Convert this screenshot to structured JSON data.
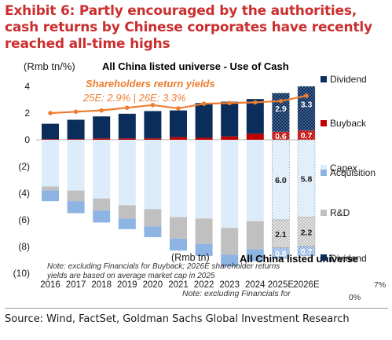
{
  "page": {
    "title": "Exhibit 6: Partly encouraged by the authorities, cash returns by Chinese corporates have recently reached all-time highs",
    "source": "Source: Wind, FactSet, Goldman Sachs Global Investment Research"
  },
  "chart_data": {
    "type": "bar",
    "title": "All China listed universe - Use of Cash",
    "ylabel": "(Rmb tn/%)",
    "ylim": [
      -10,
      4
    ],
    "yticks": [
      "4",
      "2",
      "0",
      "(2)",
      "(4)",
      "(6)",
      "(8)",
      "(10)"
    ],
    "categories": [
      "2016",
      "2017",
      "2018",
      "2019",
      "2020",
      "2021",
      "2022",
      "2023",
      "2024",
      "2025E",
      "2026E"
    ],
    "series": [
      {
        "name": "Dividend",
        "color": "#0b2d5b",
        "values": [
          1.15,
          1.45,
          1.65,
          1.85,
          2.05,
          2.0,
          2.6,
          2.6,
          2.6,
          2.9,
          3.3
        ]
      },
      {
        "name": "Buyback",
        "color": "#c00000",
        "values": [
          0.05,
          0.05,
          0.1,
          0.1,
          0.1,
          0.2,
          0.15,
          0.25,
          0.45,
          0.6,
          0.7
        ]
      },
      {
        "name": "Capex",
        "color": "#dcecfa",
        "values": [
          -3.5,
          -3.8,
          -4.4,
          -4.9,
          -5.2,
          -5.8,
          -5.9,
          -6.6,
          -6.1,
          -6.0,
          -5.8
        ]
      },
      {
        "name": "Acquisition",
        "color": "#8eb4e3",
        "values": [
          -0.8,
          -0.9,
          -0.9,
          -0.8,
          -0.8,
          -0.9,
          -0.9,
          -0.9,
          -0.9,
          -0.8,
          -0.7
        ]
      },
      {
        "name": "R&D",
        "color": "#c0c0c0",
        "values": [
          -0.3,
          -0.8,
          -0.9,
          -1.0,
          -1.3,
          -1.6,
          -1.9,
          -2.0,
          -2.1,
          -2.1,
          -2.2
        ]
      }
    ],
    "line_series": {
      "name": "Shareholders return yields",
      "color": "#ed7d31",
      "values": [
        2.0,
        2.1,
        2.2,
        2.4,
        2.6,
        2.35,
        2.7,
        2.75,
        2.8,
        2.9,
        3.3
      ]
    },
    "data_labels": {
      "2025E": {
        "Dividend": "2.9",
        "Buyback": "0.6",
        "Capex": "6.0",
        "R&D": "2.1",
        "Acquisition": "0.8"
      },
      "2026E": {
        "Dividend": "3.3",
        "Buyback": "0.7",
        "Capex": "5.8",
        "R&D": "2.2",
        "Acquisition": "0.7"
      }
    },
    "annotations": {
      "yield_title": "Shareholders return yields",
      "yield_values": "25E: 2.9% | 26E: 3.3%",
      "note": "Note: excluding Financials for Buyback; 2026E shareholder returns yields are based on average market cap in 2025",
      "ghost_ylabel": "(Rmb tn)",
      "ghost_title": "All China listed universe",
      "ghost_note": "Note: excluding Financials for",
      "ghost_pct_right": "7%",
      "ghost_pct_bottom": "0%",
      "ghost_legend": "Dividend"
    },
    "legend_placement": "right"
  }
}
